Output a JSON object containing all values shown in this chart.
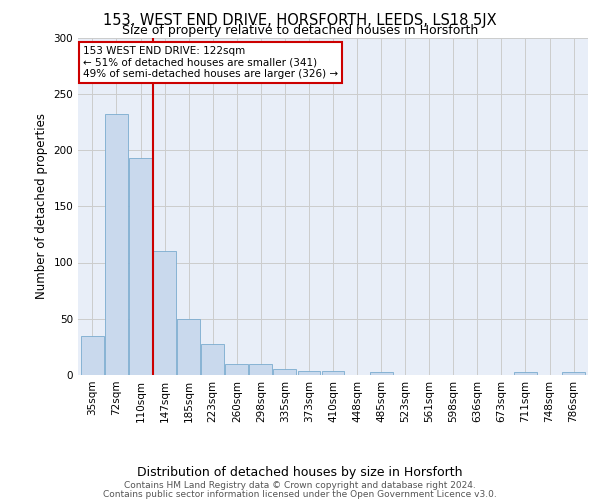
{
  "title": "153, WEST END DRIVE, HORSFORTH, LEEDS, LS18 5JX",
  "subtitle": "Size of property relative to detached houses in Horsforth",
  "xlabel": "Distribution of detached houses by size in Horsforth",
  "ylabel": "Number of detached properties",
  "bar_labels": [
    "35sqm",
    "72sqm",
    "110sqm",
    "147sqm",
    "185sqm",
    "223sqm",
    "260sqm",
    "298sqm",
    "335sqm",
    "373sqm",
    "410sqm",
    "448sqm",
    "485sqm",
    "523sqm",
    "561sqm",
    "598sqm",
    "636sqm",
    "673sqm",
    "711sqm",
    "748sqm",
    "786sqm"
  ],
  "bar_values": [
    35,
    232,
    193,
    110,
    50,
    28,
    10,
    10,
    5,
    4,
    4,
    0,
    3,
    0,
    0,
    0,
    0,
    0,
    3,
    0,
    3
  ],
  "bar_color": "#c9d9ed",
  "bar_edge_color": "#7aabcf",
  "grid_color": "#cccccc",
  "background_color": "#e8eef8",
  "red_line_x": 2.5,
  "annotation_text": "153 WEST END DRIVE: 122sqm\n← 51% of detached houses are smaller (341)\n49% of semi-detached houses are larger (326) →",
  "annotation_box_color": "#ffffff",
  "annotation_box_edge": "#cc0000",
  "footer_line1": "Contains HM Land Registry data © Crown copyright and database right 2024.",
  "footer_line2": "Contains public sector information licensed under the Open Government Licence v3.0.",
  "ylim": [
    0,
    300
  ],
  "yticks": [
    0,
    50,
    100,
    150,
    200,
    250,
    300
  ],
  "title_fontsize": 10.5,
  "subtitle_fontsize": 9,
  "ylabel_fontsize": 8.5,
  "xlabel_fontsize": 9,
  "tick_fontsize": 7.5,
  "annotation_fontsize": 7.5,
  "footer_fontsize": 6.5
}
